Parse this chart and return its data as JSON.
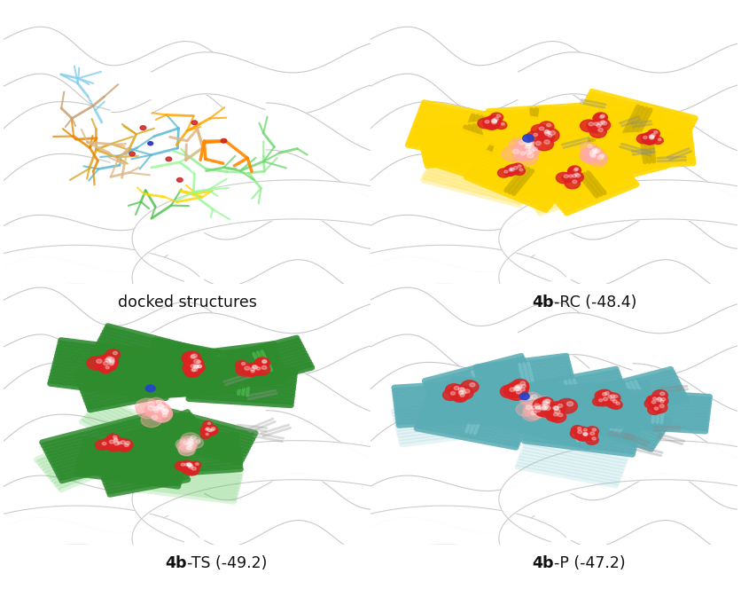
{
  "figure_width": 8.36,
  "figure_height": 6.64,
  "dpi": 100,
  "background_color": "#ffffff",
  "panel_labels": {
    "top_left": {
      "bold": "",
      "normal": "docked structures",
      "fontsize": 13
    },
    "top_right": {
      "bold": "4b",
      "normal": "-RC (-48.4)",
      "fontsize": 13
    },
    "bottom_left": {
      "bold": "4b",
      "normal": "-TS (-49.2)",
      "fontsize": 13
    },
    "bottom_right": {
      "bold": "4b",
      "normal": "-P (-47.2)",
      "fontsize": 13
    }
  },
  "colors": {
    "yellow": "#ffd700",
    "yellow_dark": "#c8a800",
    "yellow_trans": "#ffd700",
    "green": "#2e8b2e",
    "green_light": "#52c452",
    "green_trans": "#90ee90",
    "cyan": "#5badb5",
    "cyan_light": "#88ccd4",
    "cyan_trans": "#aadddd",
    "red": "#dd2222",
    "red_light": "#ff6666",
    "blue": "#2244cc",
    "protein_bg": "#f2f2f2",
    "ribbon_white": "#ffffff",
    "ribbon_edge": "#cccccc"
  }
}
